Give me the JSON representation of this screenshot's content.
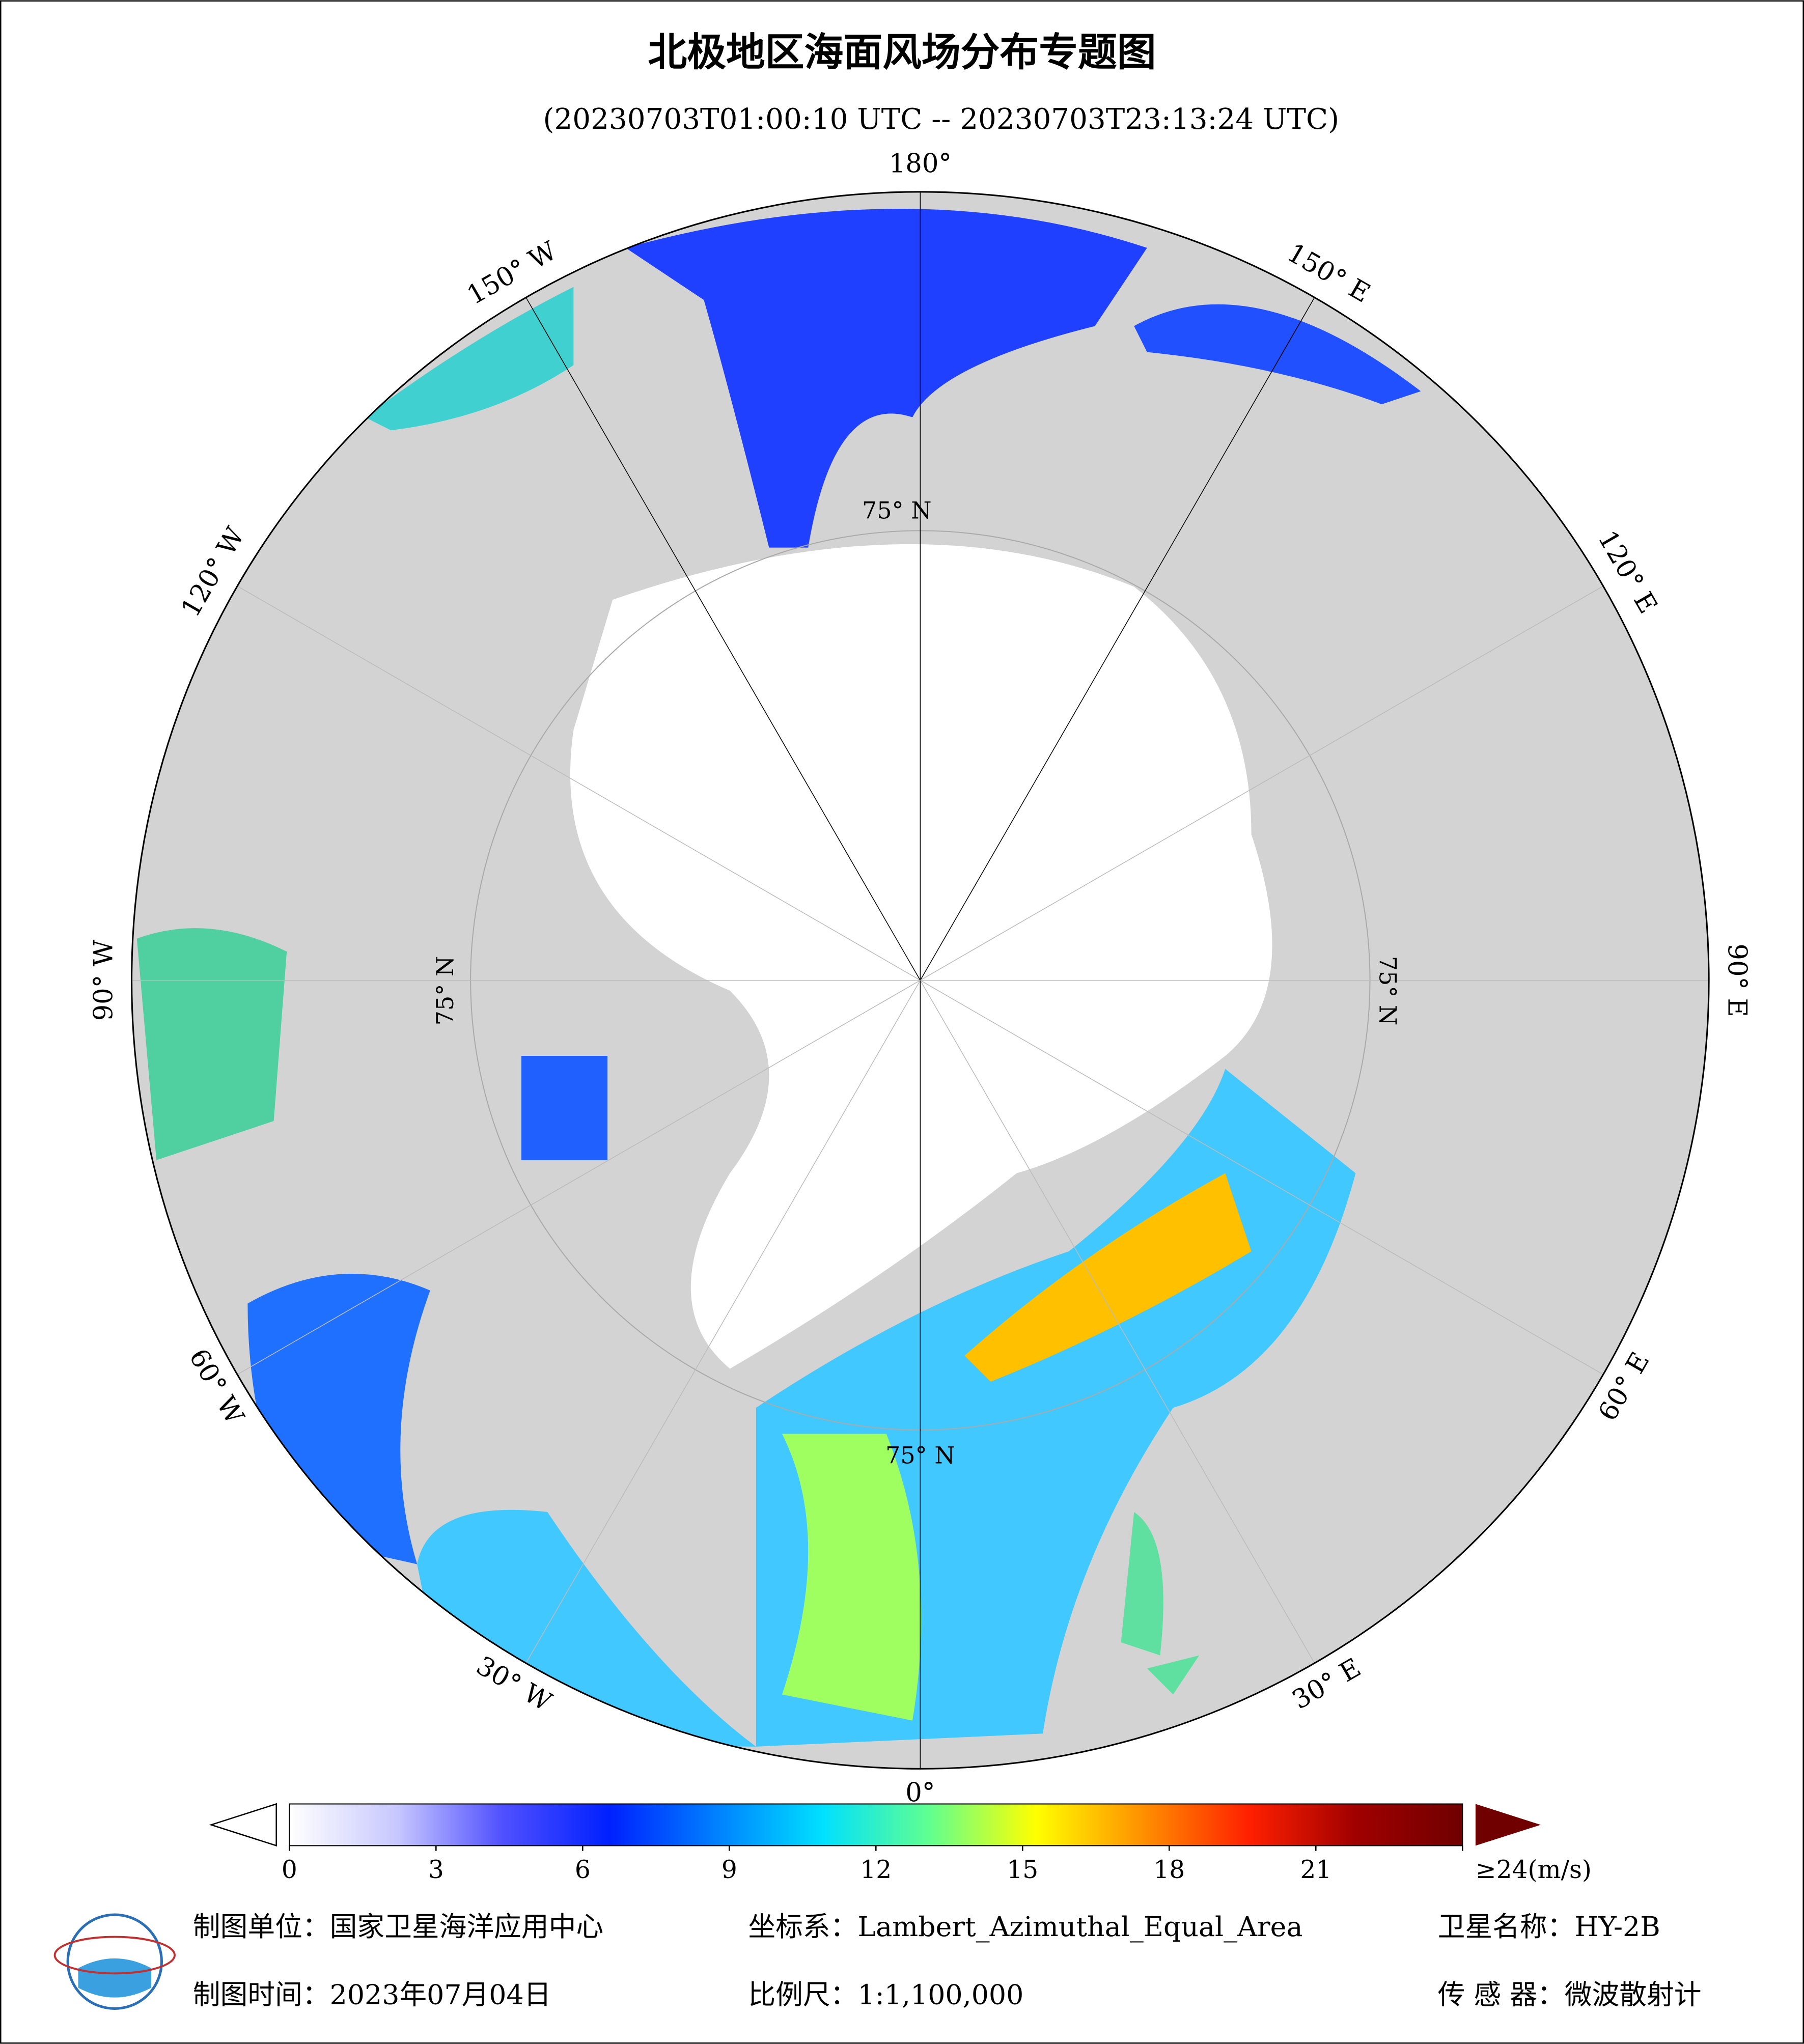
{
  "header": {
    "title": "北极地区海面风场分布专题图",
    "subtitle": "(20230703T01:00:10 UTC -- 20230703T23:13:24 UTC)"
  },
  "map": {
    "longitude_labels": [
      "180°",
      "150° E",
      "120° E",
      "90° E",
      "60° E",
      "30° E",
      "0°",
      "30° W",
      "60° W",
      "90° W",
      "120° W",
      "150° W"
    ],
    "latitude_labels": [
      "75° N",
      "75° N",
      "75° N",
      "75° N"
    ]
  },
  "colorbar": {
    "range": [
      0,
      24
    ],
    "ticks": [
      0,
      3,
      6,
      9,
      12,
      15,
      18,
      21,
      {
        "value": 24,
        "label": "≥24(m/s)"
      }
    ],
    "colors": [
      "#ffffff",
      "#c8c8ff",
      "#5050ff",
      "#0020ff",
      "#0080ff",
      "#00e0ff",
      "#60ff90",
      "#ffff00",
      "#ff9000",
      "#ff2000",
      "#a00000",
      "#700000"
    ]
  },
  "footer": {
    "unit": "制图单位：国家卫星海洋应用中心",
    "projection": "坐标系：Lambert_Azimuthal_Equal_Area",
    "satellite": "卫星名称：HY-2B",
    "date": "制图时间：2023年07月04日",
    "scale": "比例尺：1:1,100,000",
    "sensor": "传 感 器：微波散射计"
  }
}
